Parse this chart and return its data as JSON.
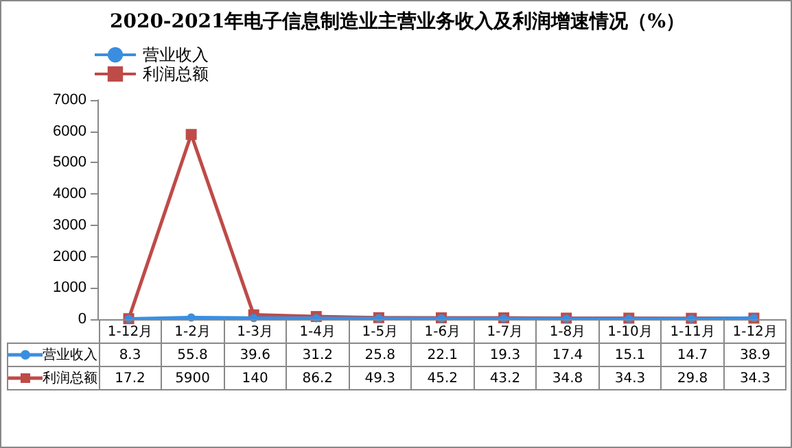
{
  "chart_data": {
    "type": "line",
    "title": "2020-2021年电子信息制造业主营业务收入及利润增速情况（%）",
    "categories": [
      "1-12月",
      "1-2月",
      "1-3月",
      "1-4月",
      "1-5月",
      "1-6月",
      "1-7月",
      "1-8月",
      "1-10月",
      "1-11月",
      "1-12月"
    ],
    "series": [
      {
        "name": "营业收入",
        "color": "#3a8ee0",
        "marker": "circle",
        "values": [
          8.3,
          55.8,
          39.6,
          31.2,
          25.8,
          22.1,
          19.3,
          17.4,
          15.1,
          14.7,
          38.9
        ]
      },
      {
        "name": "利润总额",
        "color": "#be4b48",
        "marker": "square",
        "values": [
          17.2,
          5900,
          140,
          86.2,
          49.3,
          45.2,
          43.2,
          34.8,
          34.3,
          29.8,
          34.3
        ]
      }
    ],
    "ylim": [
      0,
      7000
    ],
    "yticks": [
      0,
      1000,
      2000,
      3000,
      4000,
      5000,
      6000,
      7000
    ],
    "grid": false,
    "legend": "left",
    "data_labels": true
  }
}
